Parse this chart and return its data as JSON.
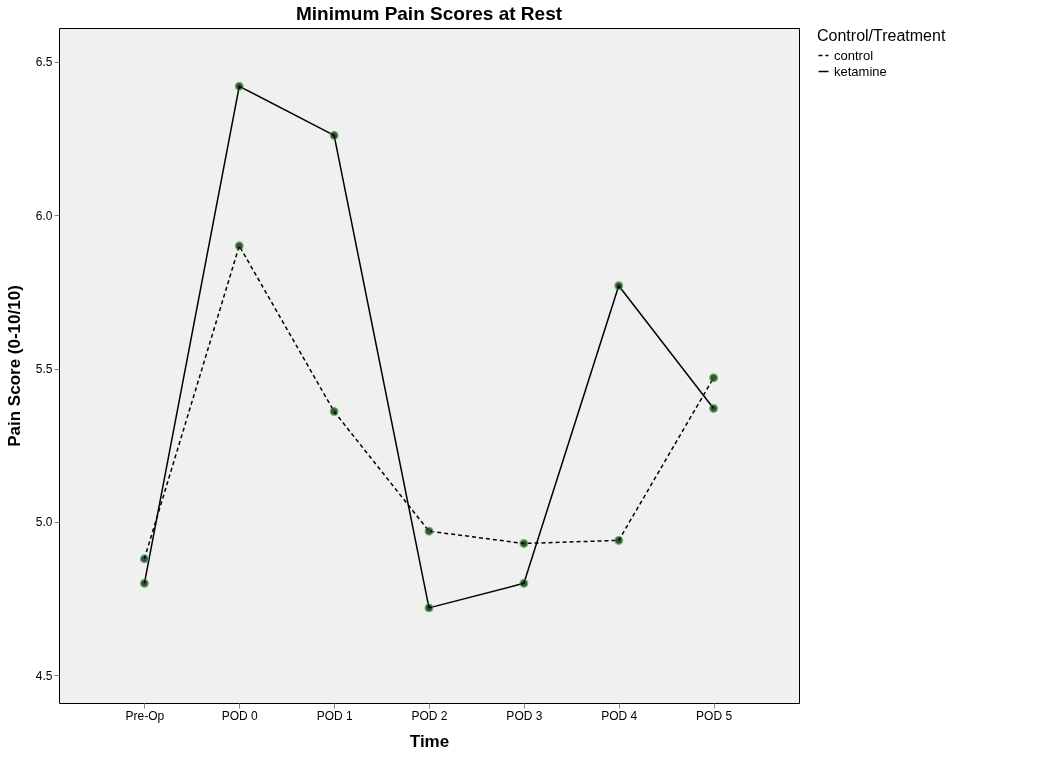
{
  "chart_data": {
    "type": "line",
    "title": "Minimum Pain Scores at Rest",
    "xlabel": "Time",
    "ylabel": "Pain Score (0-10/10)",
    "legend_title": "Control/Treatment",
    "categories": [
      "Pre-Op",
      "POD 0",
      "POD 1",
      "POD 2",
      "POD 3",
      "POD 4",
      "POD 5"
    ],
    "series": [
      {
        "name": "control",
        "color": "#000000",
        "line_style": "dashed",
        "values": [
          4.88,
          5.9,
          5.36,
          4.97,
          4.93,
          4.94,
          5.47
        ]
      },
      {
        "name": "ketamine",
        "color": "#000000",
        "line_style": "solid",
        "values": [
          4.8,
          6.42,
          6.26,
          4.72,
          4.8,
          5.77,
          5.37
        ]
      }
    ],
    "ylim": [
      4.41,
      6.61
    ],
    "yticks": [
      4.5,
      {
        "value": 5,
        "label": "5.0"
      },
      5.5,
      {
        "value": 6,
        "label": "6.0"
      },
      6.5
    ],
    "marker": "circle",
    "grid": false,
    "legend": "top right"
  }
}
